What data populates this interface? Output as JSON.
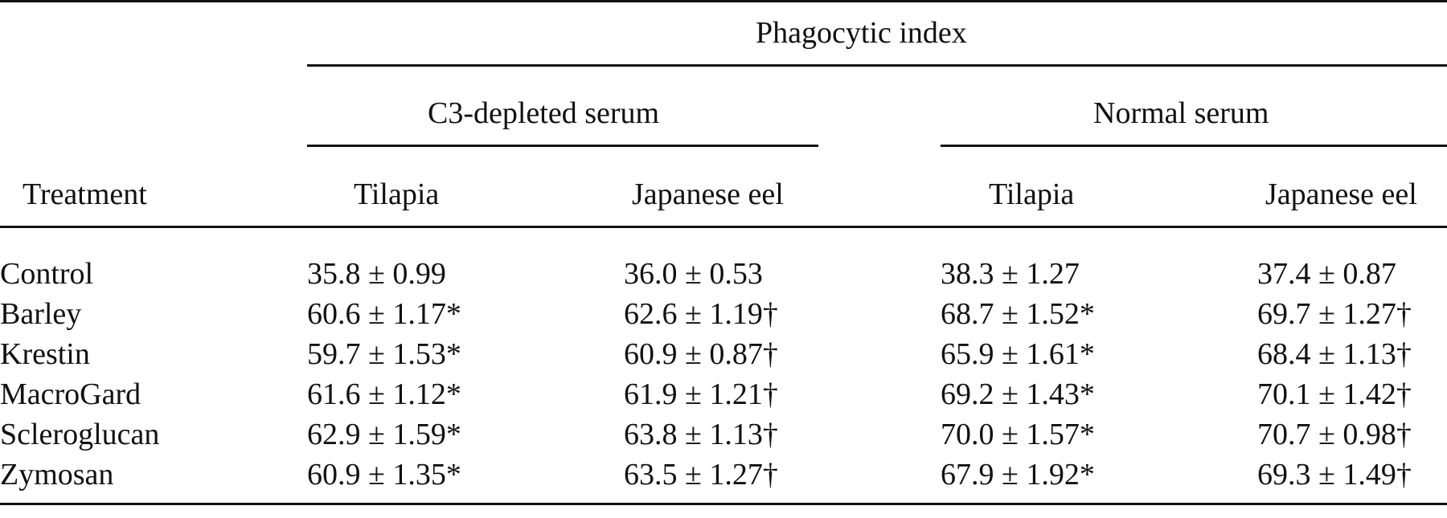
{
  "table": {
    "super_header": "Phagocytic index",
    "group_headers": [
      "C3-depleted serum",
      "Normal serum"
    ],
    "columns": [
      "Treatment",
      "Tilapia",
      "Japanese eel",
      "Tilapia",
      "Japanese eel"
    ],
    "rows": [
      {
        "treatment": "Control",
        "cells": [
          "35.8 ± 0.99",
          "36.0 ± 0.53",
          "38.3 ± 1.27",
          "37.4 ± 0.87"
        ]
      },
      {
        "treatment": "Barley",
        "cells": [
          "60.6 ± 1.17*",
          "62.6 ± 1.19†",
          "68.7 ± 1.52*",
          "69.7 ± 1.27†"
        ]
      },
      {
        "treatment": "Krestin",
        "cells": [
          "59.7 ± 1.53*",
          "60.9 ± 0.87†",
          "65.9 ± 1.61*",
          "68.4 ± 1.13†"
        ]
      },
      {
        "treatment": "MacroGard",
        "cells": [
          "61.6 ± 1.12*",
          "61.9 ± 1.21†",
          "69.2 ± 1.43*",
          "70.1 ± 1.42†"
        ]
      },
      {
        "treatment": "Scleroglucan",
        "cells": [
          "62.9 ± 1.59*",
          "63.8 ± 1.13†",
          "70.0 ± 1.57*",
          "70.7 ± 0.98†"
        ]
      },
      {
        "treatment": "Zymosan",
        "cells": [
          "60.9 ± 1.35*",
          "63.5 ± 1.27†",
          "67.9 ± 1.92*",
          "69.3 ± 1.49†"
        ]
      }
    ]
  }
}
